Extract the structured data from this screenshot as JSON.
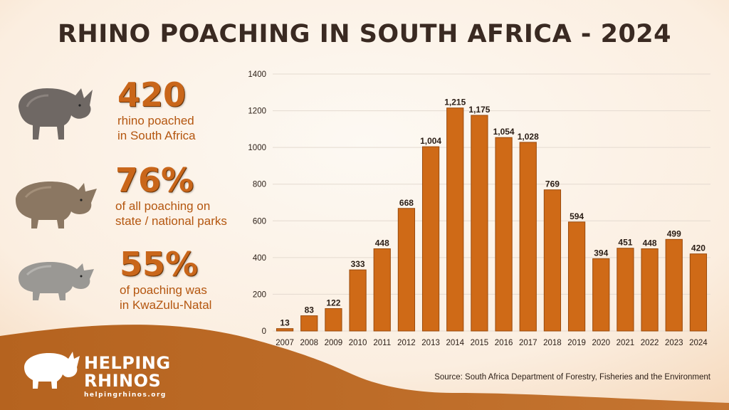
{
  "title": "RHINO POACHING IN SOUTH AFRICA - 2024",
  "stats": [
    {
      "value": "420",
      "line1": "rhino poached",
      "line2": "in South Africa"
    },
    {
      "value": "76%",
      "line1": "of all poaching on",
      "line2": "state / national parks"
    },
    {
      "value": "55%",
      "line1": "of poaching was",
      "line2": "in KwaZulu-Natal"
    }
  ],
  "logo": {
    "line1": "HELPING",
    "line2": "RHINOS",
    "url": "helpingrhinos.org"
  },
  "source": "Source: South Africa Department of Forestry, Fisheries and the Environment",
  "colors": {
    "bar": "#cf6a17",
    "bar_dark": "#9a4a0c",
    "accent_text": "#c9661a",
    "wave": "#b8651e",
    "title": "#3a2a22"
  },
  "chart_data": {
    "type": "bar",
    "categories": [
      "2007",
      "2008",
      "2009",
      "2010",
      "2011",
      "2012",
      "2013",
      "2014",
      "2015",
      "2016",
      "2017",
      "2018",
      "2019",
      "2020",
      "2021",
      "2022",
      "2023",
      "2024"
    ],
    "values": [
      13,
      83,
      122,
      333,
      448,
      668,
      1004,
      1215,
      1175,
      1054,
      1028,
      769,
      594,
      394,
      451,
      448,
      499,
      420
    ],
    "value_labels": [
      "13",
      "83",
      "122",
      "333",
      "448",
      "668",
      "1,004",
      "1,215",
      "1,175",
      "1,054",
      "1,028",
      "769",
      "594",
      "394",
      "451",
      "448",
      "499",
      "420"
    ],
    "y_ticks": [
      0,
      200,
      400,
      600,
      800,
      1000,
      1200,
      1400
    ],
    "ylim": [
      0,
      1400
    ],
    "grid": true,
    "title": "",
    "xlabel": "",
    "ylabel": ""
  }
}
